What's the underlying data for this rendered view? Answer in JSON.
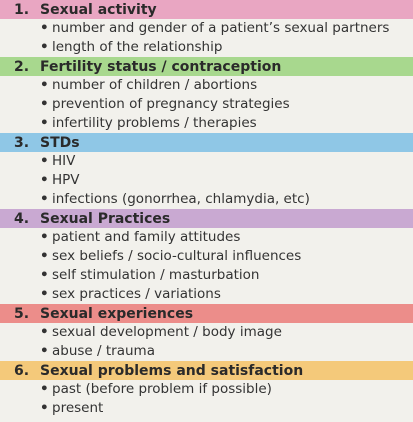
{
  "bullet_glyph": "•",
  "sections": [
    {
      "number": "1.",
      "title": "Sexual activity",
      "color": "#e9a6c2",
      "items": [
        "number and gender of a patient’s sexual partners",
        "length of the relationship"
      ]
    },
    {
      "number": "2.",
      "title": "Fertility status / contraception",
      "color": "#a8d88e",
      "items": [
        "number of children / abortions",
        "prevention of pregnancy strategies",
        "infertility problems / therapies"
      ]
    },
    {
      "number": "3.",
      "title": "STDs",
      "color": "#8fc7e6",
      "items": [
        "HIV",
        "HPV",
        "infections (gonorrhea, chlamydia, etc)"
      ]
    },
    {
      "number": "4.",
      "title": "Sexual Practices",
      "color": "#c9a9d2",
      "items": [
        "patient and family attitudes",
        "sex beliefs / socio-cultural influences",
        "self stimulation / masturbation",
        "sex practices / variations"
      ]
    },
    {
      "number": "5.",
      "title": "Sexual experiences",
      "color": "#ec8d8a",
      "items": [
        "sexual development / body image",
        "abuse / trauma"
      ]
    },
    {
      "number": "6.",
      "title": "Sexual problems and satisfaction",
      "color": "#f4c97a",
      "items": [
        "past (before problem if possible)",
        "present"
      ]
    }
  ]
}
